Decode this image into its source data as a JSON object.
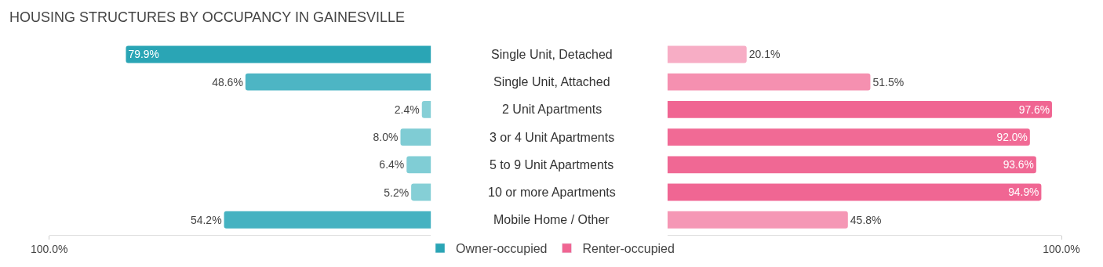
{
  "chart_data": [
    {
      "type": "bar",
      "orientation": "horizontal",
      "title": "HOUSING STRUCTURES BY OCCUPANCY IN GAINESVILLE",
      "categories": [
        "Single Unit, Detached",
        "Single Unit, Attached",
        "2 Unit Apartments",
        "3 or 4 Unit Apartments",
        "5 to 9 Unit Apartments",
        "10 or more Apartments",
        "Mobile Home / Other"
      ],
      "series": [
        {
          "name": "Owner-occupied",
          "color": "#2aa5b5",
          "colors": [
            "#2aa5b5",
            "#4db5c4",
            "#85cfd6",
            "#7fccd4",
            "#80cdd5",
            "#85cfd6",
            "#45b2c1"
          ],
          "values": [
            79.9,
            48.6,
            2.4,
            8.0,
            6.4,
            5.2,
            54.2
          ],
          "value_labels": [
            "79.9%",
            "48.6%",
            "2.4%",
            "8.0%",
            "6.4%",
            "5.2%",
            "54.2%"
          ]
        }
      ],
      "xlim": [
        100,
        0
      ],
      "xticks": [
        {
          "value": 100,
          "label": "100.0%"
        }
      ],
      "legend": "bottom"
    },
    {
      "type": "bar",
      "orientation": "horizontal",
      "tick_labels": "x",
      "series": [
        {
          "name": "Renter-occupied",
          "color": "#f06592",
          "colors": [
            "#f7adc5",
            "#f590b0",
            "#f06592",
            "#f16a95",
            "#f06894",
            "#f06693",
            "#f597b5"
          ],
          "values": [
            20.1,
            51.5,
            97.6,
            92.0,
            93.6,
            94.9,
            45.8
          ],
          "value_labels": [
            "20.1%",
            "51.5%",
            "97.6%",
            "92.0%",
            "93.6%",
            "94.9%",
            "45.8%"
          ]
        }
      ],
      "xlim": [
        0,
        100
      ],
      "xticks": [
        {
          "value": 100,
          "label": "100.0%"
        }
      ],
      "legend": "bottom"
    }
  ]
}
